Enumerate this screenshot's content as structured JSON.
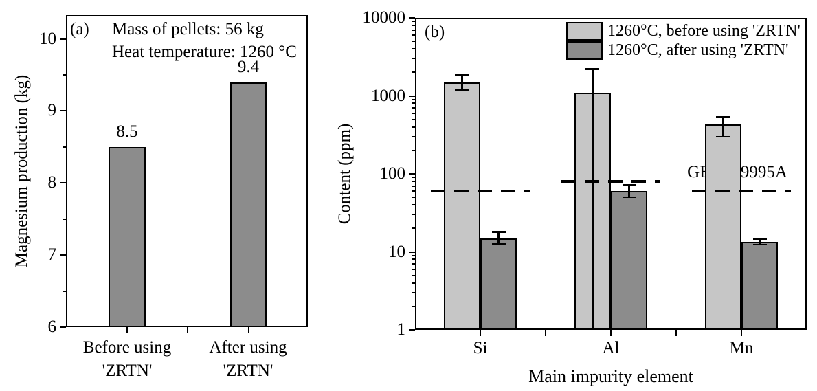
{
  "figure": {
    "background": "#ffffff",
    "text_color": "#000000"
  },
  "chart_data": [
    {
      "id": "panel-a",
      "type": "bar",
      "panel_label": "(a)",
      "annotations": [
        "Mass of pellets: 56 kg",
        "Heat temperature: 1260 °C"
      ],
      "xlabel": "",
      "ylabel": "Magnesium production (kg)",
      "yscale": "linear",
      "ylim": [
        6,
        10.33
      ],
      "yticks": [
        6,
        7,
        8,
        9,
        10
      ],
      "minor_ytick_step": 0.5,
      "grid": false,
      "categories": [
        [
          "Before using",
          "'ZRTN'"
        ],
        [
          "After using",
          "'ZRTN'"
        ]
      ],
      "values": [
        8.5,
        9.4
      ],
      "bar_labels": [
        "8.5",
        "9.4"
      ],
      "bar_color": "#8c8c8c",
      "bar_edge_color": "#000000"
    },
    {
      "id": "panel-b",
      "type": "bar",
      "panel_label": "(b)",
      "xlabel": "Main impurity element",
      "ylabel": "Content (ppm)",
      "yscale": "log",
      "ylim": [
        1,
        10000
      ],
      "yticks": [
        1,
        10,
        100,
        1000,
        10000
      ],
      "grid": false,
      "legend_position": "top-right",
      "categories": [
        "Si",
        "Al",
        "Mn"
      ],
      "series": [
        {
          "name": "1260°C, before using 'ZRTN'",
          "color": "#c6c6c6",
          "values": [
            1500,
            1100,
            430
          ],
          "err_low": [
            1200,
            1,
            300
          ],
          "err_high": [
            1850,
            2200,
            540
          ],
          "err_low_clipped": [
            false,
            true,
            false
          ]
        },
        {
          "name": "1260°C, after using 'ZRTN'",
          "color": "#8c8c8c",
          "values": [
            15,
            60,
            13.4
          ],
          "err_low": [
            12.5,
            50,
            12.4
          ],
          "err_high": [
            18,
            72,
            14.6
          ],
          "err_low_clipped": [
            false,
            false,
            false
          ]
        }
      ],
      "dashed_limits": {
        "label": "GB-Mg9995A",
        "values": [
          60,
          80,
          60
        ],
        "color": "#000000"
      }
    }
  ]
}
